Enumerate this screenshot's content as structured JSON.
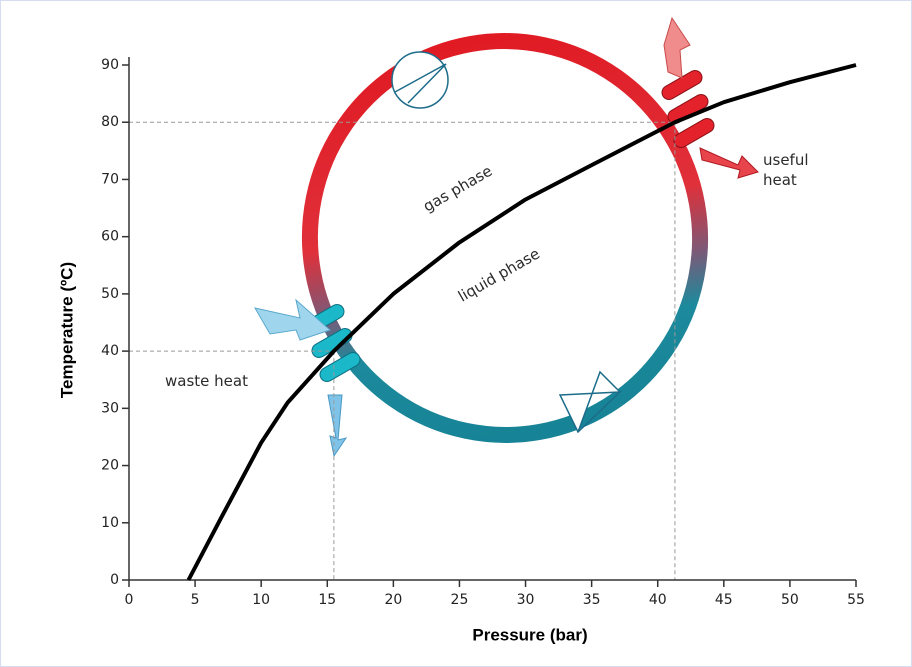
{
  "chart_data": {
    "type": "line",
    "x_label": "Pressure (bar)",
    "y_label": "Temperature (ºC)",
    "x": [
      4.5,
      7,
      10,
      12,
      15.5,
      20,
      25,
      30,
      35,
      41.3,
      45,
      50,
      55
    ],
    "series": [
      {
        "color": "#000000",
        "values": [
          0,
          11,
          24,
          31,
          40,
          50,
          59,
          66.5,
          72.5,
          80,
          83.5,
          87,
          90
        ]
      }
    ],
    "xlim": [
      0,
      55
    ],
    "ylim": [
      0,
      90
    ],
    "xticks": [
      0,
      5,
      10,
      15,
      20,
      25,
      30,
      35,
      40,
      45,
      50,
      55
    ],
    "yticks": [
      0,
      10,
      20,
      30,
      40,
      50,
      60,
      70,
      80,
      90
    ],
    "guides": [
      {
        "x": 15.5,
        "y": 40
      },
      {
        "x": 41.3,
        "y": 80
      }
    ],
    "annotations": [
      "gas phase",
      "liquid phase",
      "waste heat",
      "useful heat"
    ]
  }
}
